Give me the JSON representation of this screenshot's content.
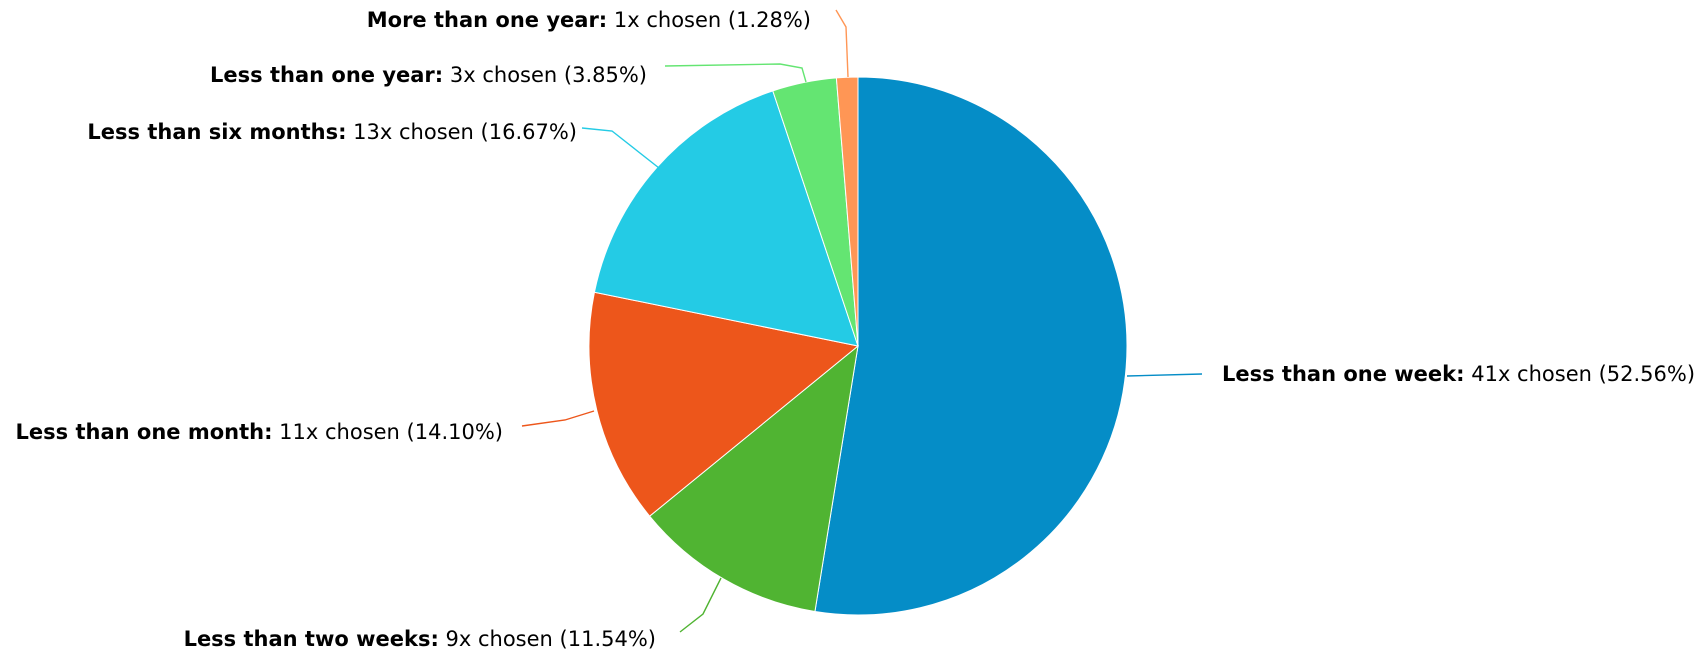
{
  "chart_data": {
    "type": "pie",
    "start_angle_deg": 0,
    "direction": "clockwise",
    "slices": [
      {
        "label": "Less than one week",
        "count": 41,
        "value": 52.56,
        "count_text": "41x chosen",
        "percent_text": "(52.56%)",
        "color": "#058dc7"
      },
      {
        "label": "Less than two weeks",
        "count": 9,
        "value": 11.54,
        "count_text": "9x chosen",
        "percent_text": "(11.54%)",
        "color": "#50b432"
      },
      {
        "label": "Less than one month",
        "count": 11,
        "value": 14.1,
        "count_text": "11x chosen",
        "percent_text": "(14.10%)",
        "color": "#ed561b"
      },
      {
        "label": "Less than six months",
        "count": 13,
        "value": 16.67,
        "count_text": "13x chosen",
        "percent_text": "(16.67%)",
        "color": "#24cbe5"
      },
      {
        "label": "Less than one year",
        "count": 3,
        "value": 3.85,
        "count_text": "3x chosen",
        "percent_text": "(3.85%)",
        "color": "#64e572"
      },
      {
        "label": "More than one year",
        "count": 1,
        "value": 1.28,
        "count_text": "1x chosen",
        "percent_text": "(1.28%)",
        "color": "#ff9655"
      }
    ]
  }
}
